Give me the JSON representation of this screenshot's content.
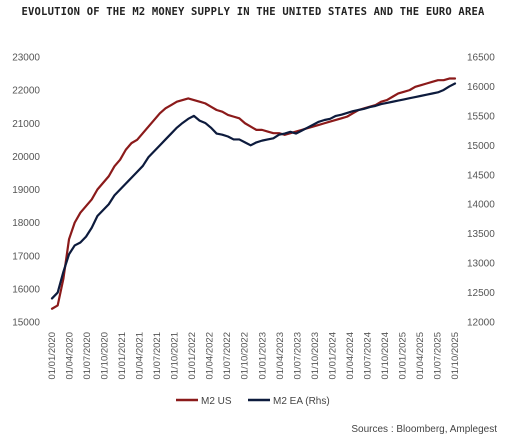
{
  "chart_data": {
    "type": "line",
    "title": "EVOLUTION OF THE M2 MONEY SUPPLY IN THE UNITED STATES AND THE EURO AREA",
    "source": "Sources : Bloomberg, Amplegest",
    "x_tick_labels": [
      "01/01/2020",
      "01/04/2020",
      "01/07/2020",
      "01/10/2020",
      "01/01/2021",
      "01/04/2021",
      "01/07/2021",
      "01/10/2021",
      "01/01/2022",
      "01/04/2022",
      "01/07/2022",
      "01/10/2022",
      "01/01/2023",
      "01/04/2023",
      "01/07/2023",
      "01/10/2023",
      "01/01/2024",
      "01/04/2024",
      "01/07/2024",
      "01/10/2024",
      "01/01/2025",
      "01/04/2025",
      "01/07/2025",
      "01/10/2025"
    ],
    "y_left": {
      "range": [
        15000,
        23000
      ],
      "ticks": [
        15000,
        16000,
        17000,
        18000,
        19000,
        20000,
        21000,
        22000,
        23000
      ]
    },
    "y_right": {
      "range": [
        12000,
        16500
      ],
      "ticks": [
        12000,
        12500,
        13000,
        13500,
        14000,
        14500,
        15000,
        15500,
        16000,
        16500
      ]
    },
    "grid": false,
    "legend_position": "bottom-center",
    "series": [
      {
        "name": "M2 US",
        "axis": "left",
        "color": "#8b1a1a",
        "x": [
          0,
          1,
          2,
          3,
          4,
          5,
          6,
          7,
          8,
          9,
          10,
          11,
          12,
          13,
          14,
          15,
          16,
          17,
          18,
          19,
          20,
          21,
          22,
          23,
          24,
          25,
          26,
          27,
          28,
          29,
          30,
          31,
          32,
          33,
          34,
          35,
          36,
          37,
          38,
          39,
          40,
          41,
          42,
          43,
          44,
          45,
          46,
          47,
          48,
          49,
          50,
          51,
          52,
          53,
          54,
          55,
          56,
          57,
          58,
          59,
          60,
          61,
          62,
          63,
          64,
          65,
          66,
          67,
          68,
          69,
          70,
          71
        ],
        "values": [
          15400,
          15500,
          16300,
          17500,
          18000,
          18300,
          18500,
          18700,
          19000,
          19200,
          19400,
          19700,
          19900,
          20200,
          20400,
          20500,
          20700,
          20900,
          21100,
          21300,
          21450,
          21550,
          21650,
          21700,
          21750,
          21700,
          21650,
          21600,
          21500,
          21400,
          21350,
          21250,
          21200,
          21150,
          21000,
          20900,
          20800,
          20800,
          20750,
          20700,
          20700,
          20650,
          20700,
          20750,
          20800,
          20850,
          20900,
          20950,
          21000,
          21050,
          21100,
          21150,
          21200,
          21300,
          21400,
          21450,
          21500,
          21550,
          21650,
          21700,
          21800,
          21900,
          21950,
          22000,
          22100,
          22150,
          22200,
          22250,
          22300,
          22300,
          22350,
          22350
        ]
      },
      {
        "name": "M2 EA (Rhs)",
        "axis": "right",
        "color": "#0d1b3d",
        "x": [
          0,
          1,
          2,
          3,
          4,
          5,
          6,
          7,
          8,
          9,
          10,
          11,
          12,
          13,
          14,
          15,
          16,
          17,
          18,
          19,
          20,
          21,
          22,
          23,
          24,
          25,
          26,
          27,
          28,
          29,
          30,
          31,
          32,
          33,
          34,
          35,
          36,
          37,
          38,
          39,
          40,
          41,
          42,
          43,
          44,
          45,
          46,
          47,
          48,
          49,
          50,
          51,
          52,
          53,
          54,
          55,
          56,
          57,
          58,
          59,
          60,
          61,
          62,
          63,
          64,
          65,
          66,
          67,
          68,
          69,
          70,
          71
        ],
        "values": [
          12400,
          12500,
          12850,
          13150,
          13300,
          13350,
          13450,
          13600,
          13800,
          13900,
          14000,
          14150,
          14250,
          14350,
          14450,
          14550,
          14650,
          14800,
          14900,
          15000,
          15100,
          15200,
          15300,
          15380,
          15450,
          15500,
          15420,
          15380,
          15300,
          15200,
          15180,
          15150,
          15100,
          15100,
          15050,
          15000,
          15050,
          15080,
          15100,
          15120,
          15180,
          15200,
          15230,
          15200,
          15250,
          15300,
          15350,
          15400,
          15430,
          15450,
          15500,
          15520,
          15550,
          15580,
          15600,
          15620,
          15650,
          15670,
          15700,
          15720,
          15740,
          15760,
          15780,
          15800,
          15820,
          15840,
          15860,
          15880,
          15900,
          15940,
          16000,
          16050
        ]
      }
    ]
  }
}
